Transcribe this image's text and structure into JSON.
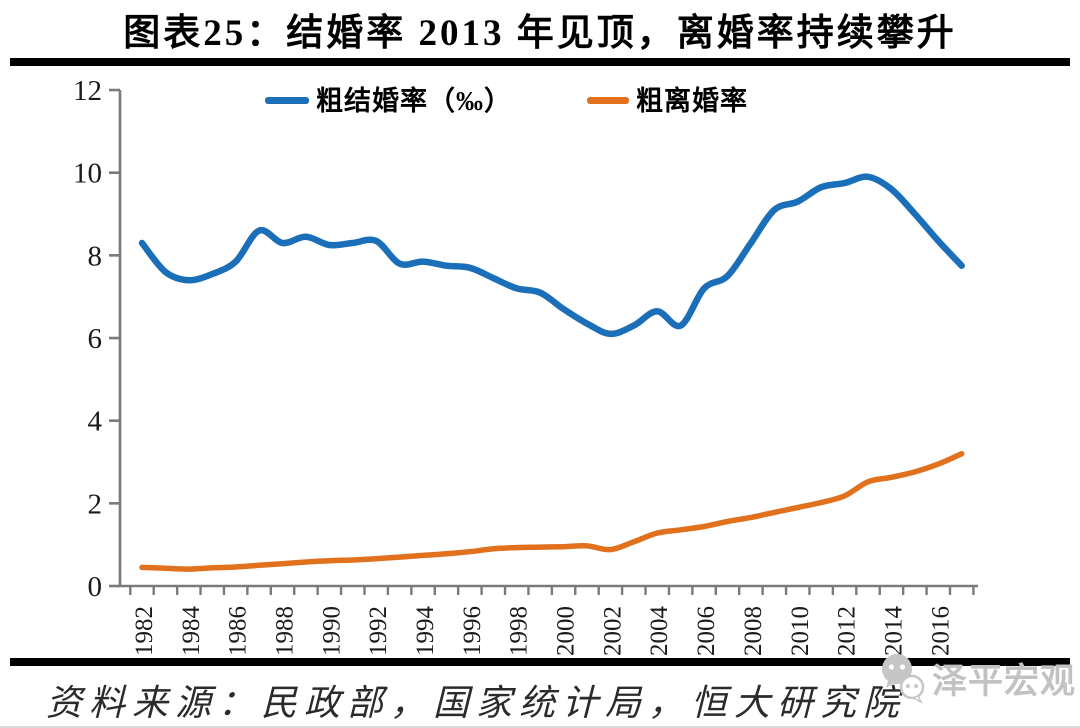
{
  "header": {
    "title": "图表25：结婚率 2013 年见顶，离婚率持续攀升"
  },
  "legend": [
    {
      "label": "粗结婚率（‰）",
      "color": "#1b6fb8"
    },
    {
      "label": "粗离婚率",
      "color": "#e2711d"
    }
  ],
  "chart_data": {
    "type": "line",
    "title": "图表25：结婚率 2013 年见顶，离婚率持续攀升",
    "xlabel": "",
    "ylabel": "",
    "ylim": [
      0,
      12
    ],
    "yticks": [
      0,
      2,
      4,
      6,
      8,
      10,
      12
    ],
    "grid": false,
    "legend_position": "top",
    "axis_color": "#7a7a7a",
    "x": [
      1982,
      1983,
      1984,
      1985,
      1986,
      1987,
      1988,
      1989,
      1990,
      1991,
      1992,
      1993,
      1994,
      1995,
      1996,
      1997,
      1998,
      1999,
      2000,
      2001,
      2002,
      2003,
      2004,
      2005,
      2006,
      2007,
      2008,
      2009,
      2010,
      2011,
      2012,
      2013,
      2014,
      2015,
      2016,
      2017
    ],
    "xtick_labels": [
      "1982",
      "1984",
      "1986",
      "1988",
      "1990",
      "1992",
      "1994",
      "1996",
      "1998",
      "2000",
      "2002",
      "2004",
      "2006",
      "2008",
      "2010",
      "2012",
      "2014",
      "2016"
    ],
    "series": [
      {
        "name": "粗结婚率（‰）",
        "color": "#1b6fb8",
        "values": [
          8.3,
          7.6,
          7.4,
          7.55,
          7.85,
          8.6,
          8.3,
          8.45,
          8.25,
          8.3,
          8.35,
          7.8,
          7.85,
          7.75,
          7.7,
          7.45,
          7.2,
          7.1,
          6.7,
          6.35,
          6.1,
          6.3,
          6.65,
          6.3,
          7.2,
          7.5,
          8.3,
          9.1,
          9.3,
          9.65,
          9.75,
          9.9,
          9.6,
          9.0,
          8.35,
          7.75
        ]
      },
      {
        "name": "粗离婚率",
        "color": "#e2711d",
        "values": [
          0.45,
          0.43,
          0.41,
          0.44,
          0.46,
          0.5,
          0.54,
          0.58,
          0.61,
          0.63,
          0.66,
          0.7,
          0.74,
          0.78,
          0.83,
          0.9,
          0.93,
          0.94,
          0.95,
          0.97,
          0.88,
          1.07,
          1.28,
          1.36,
          1.44,
          1.56,
          1.66,
          1.78,
          1.9,
          2.02,
          2.18,
          2.52,
          2.63,
          2.76,
          2.95,
          3.2
        ]
      }
    ]
  },
  "footer": {
    "source": "资料来源：民政部，国家统计局，恒大研究院",
    "logo_text": "泽平宏观"
  }
}
